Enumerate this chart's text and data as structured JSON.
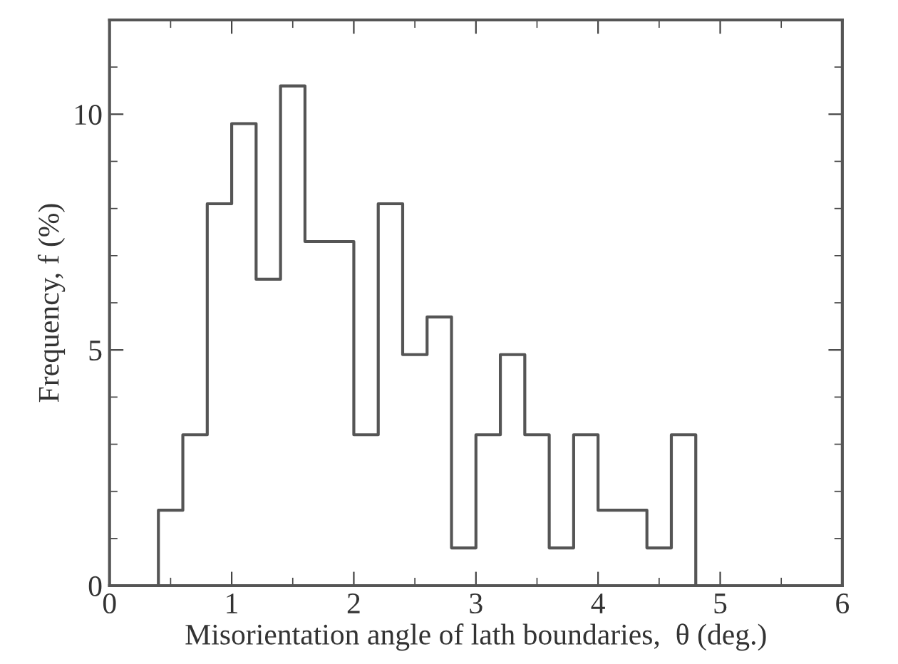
{
  "chart_data": {
    "type": "histogram",
    "xlabel": "Misorientation angle of lath boundaries,  θ (deg.)",
    "ylabel": "Frequency, f (%)",
    "bins": [
      0.4,
      0.6,
      0.8,
      1.0,
      1.2,
      1.4,
      1.6,
      1.8,
      2.0,
      2.2,
      2.4,
      2.6,
      2.8,
      3.0,
      3.2,
      3.4,
      3.6,
      3.8,
      4.0,
      4.2,
      4.4,
      4.6,
      4.8
    ],
    "values": [
      1.6,
      3.2,
      8.1,
      9.8,
      6.5,
      10.6,
      7.3,
      7.3,
      3.2,
      8.1,
      4.9,
      5.7,
      0.8,
      3.2,
      4.9,
      3.2,
      0.8,
      3.2,
      1.6,
      1.6,
      0.8,
      3.2
    ],
    "color": "#555555",
    "xlim": [
      0,
      6
    ],
    "ylim": [
      0,
      12
    ],
    "xticks": [
      0,
      {
        "value": 0.5,
        "label": null
      },
      1,
      {
        "value": 1.5,
        "label": null
      },
      2,
      {
        "value": 2.5,
        "label": null
      },
      3,
      {
        "value": 3.5,
        "label": null
      },
      4,
      {
        "value": 4.5,
        "label": null
      },
      5,
      {
        "value": 5.5,
        "label": null
      },
      6
    ],
    "yticks": [
      0,
      {
        "value": 1,
        "label": null
      },
      {
        "value": 2,
        "label": null
      },
      {
        "value": 3,
        "label": null
      },
      {
        "value": 4,
        "label": null
      },
      5,
      {
        "value": 6,
        "label": null
      },
      {
        "value": 7,
        "label": null
      },
      {
        "value": 8,
        "label": null
      },
      {
        "value": 9,
        "label": null
      },
      10,
      {
        "value": 11,
        "label": null
      }
    ],
    "grid": false
  }
}
